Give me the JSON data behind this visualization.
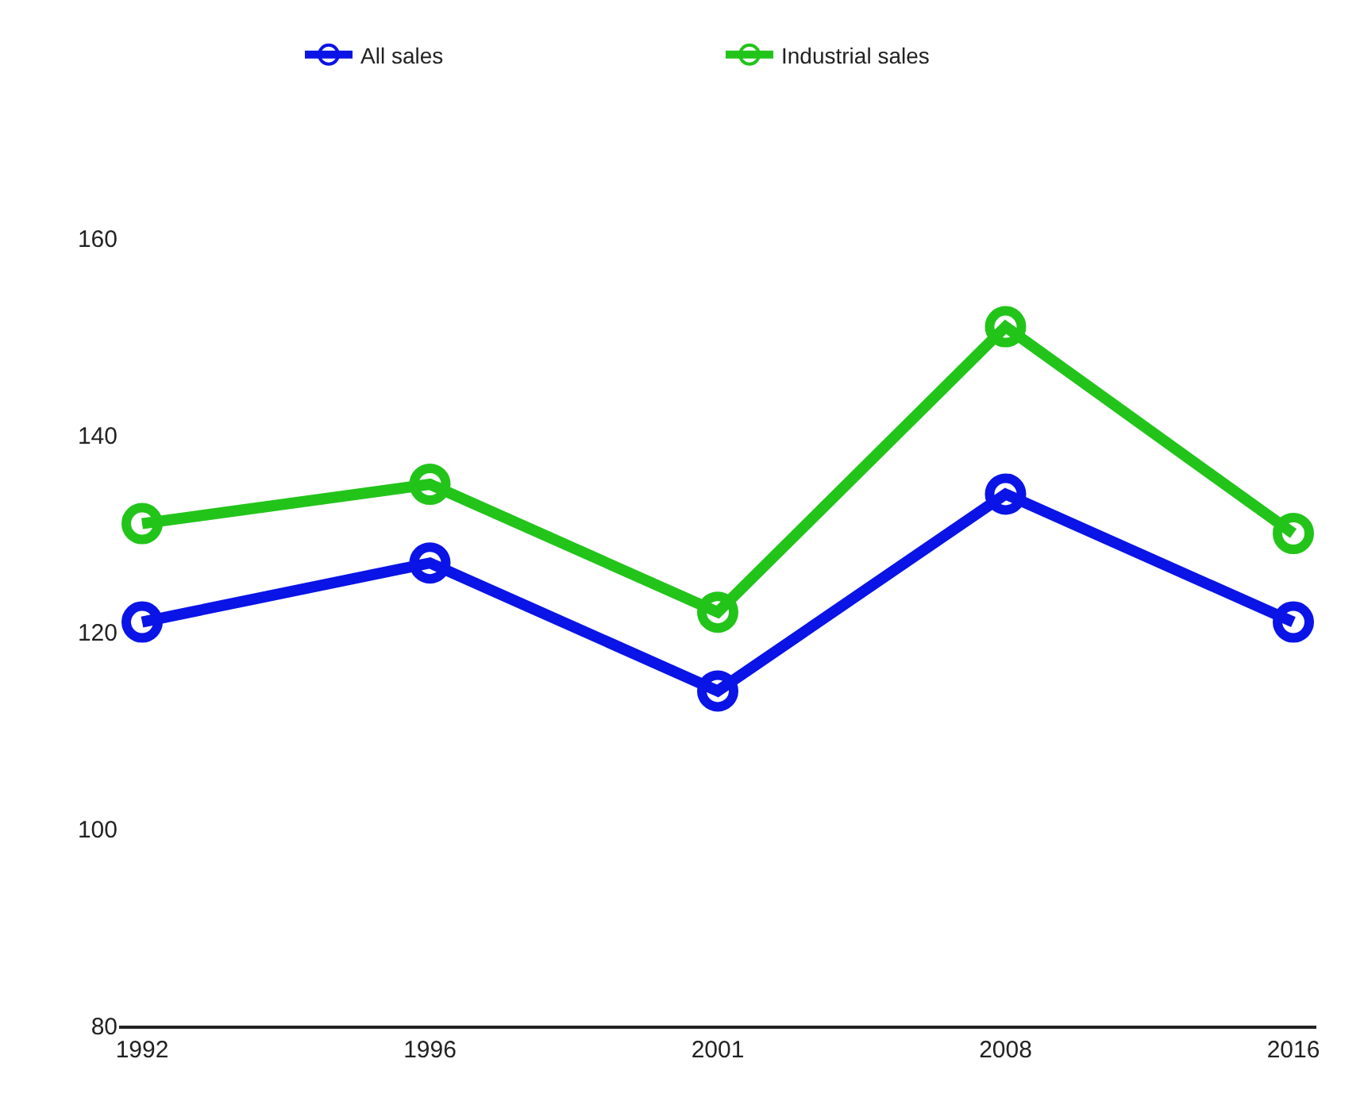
{
  "chart_data": {
    "type": "line",
    "categories": [
      "1992",
      "1996",
      "2001",
      "2008",
      "2016"
    ],
    "series": [
      {
        "name": "All sales",
        "color": "#0a14e6",
        "values": [
          121,
          127,
          114,
          134,
          121
        ]
      },
      {
        "name": "Industrial sales",
        "color": "#22c41a",
        "values": [
          131,
          135,
          122,
          151,
          130
        ]
      }
    ],
    "ylim": [
      80,
      160
    ],
    "yticks": [
      80,
      100,
      120,
      140,
      160
    ],
    "legend": "top",
    "marker": "circle",
    "line_style": "solid"
  }
}
